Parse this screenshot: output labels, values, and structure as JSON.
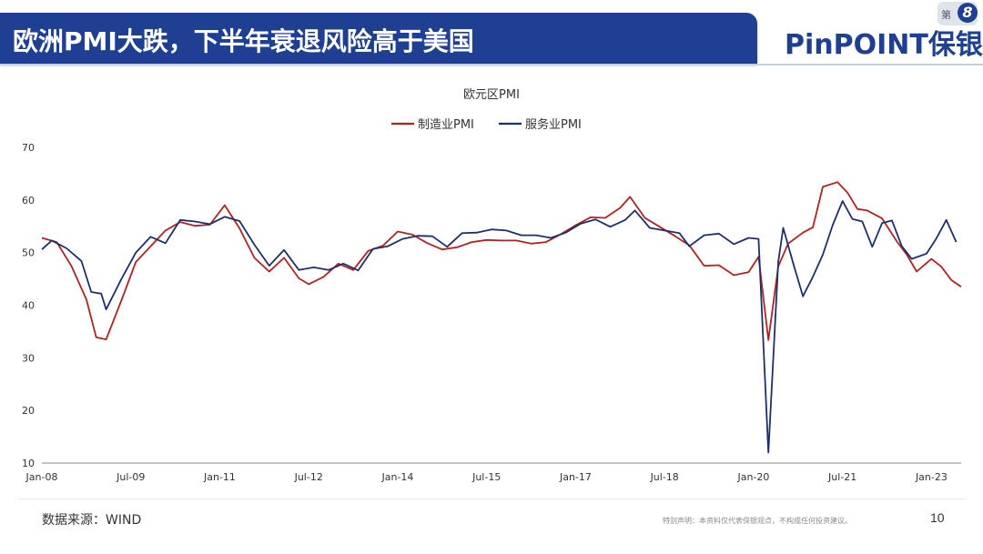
{
  "header": {
    "title": "欧洲PMI大跌，下半年衰退风险高于美国",
    "logo": "PinPOINT保银",
    "badge_text": "第",
    "badge_number": "8"
  },
  "chart_data": {
    "type": "line",
    "title": "欧元区PMI",
    "xlabel": "",
    "ylabel": "",
    "ylim": [
      10,
      70
    ],
    "yticks": [
      10,
      20,
      30,
      40,
      50,
      60,
      70
    ],
    "xticks": [
      "Jan-08",
      "Jul-09",
      "Jan-11",
      "Jul-12",
      "Jan-14",
      "Jul-15",
      "Jan-17",
      "Jul-18",
      "Jan-20",
      "Jul-21",
      "Jan-23"
    ],
    "x_range": [
      "2008-01",
      "2023-07"
    ],
    "legend_position": "top-center",
    "grid": false,
    "series": [
      {
        "name": "制造业PMI",
        "color": "#b22222",
        "points": [
          [
            "2008-01",
            52.8
          ],
          [
            "2008-04",
            52.0
          ],
          [
            "2008-07",
            47.4
          ],
          [
            "2008-10",
            41.1
          ],
          [
            "2008-12",
            33.9
          ],
          [
            "2009-02",
            33.5
          ],
          [
            "2009-05",
            40.7
          ],
          [
            "2009-08",
            48.2
          ],
          [
            "2009-11",
            51.2
          ],
          [
            "2010-02",
            54.2
          ],
          [
            "2010-05",
            55.8
          ],
          [
            "2010-08",
            55.1
          ],
          [
            "2010-11",
            55.3
          ],
          [
            "2011-02",
            59.0
          ],
          [
            "2011-05",
            54.6
          ],
          [
            "2011-08",
            49.0
          ],
          [
            "2011-11",
            46.4
          ],
          [
            "2012-02",
            49.0
          ],
          [
            "2012-05",
            45.1
          ],
          [
            "2012-07",
            44.0
          ],
          [
            "2012-10",
            45.4
          ],
          [
            "2013-01",
            47.9
          ],
          [
            "2013-04",
            46.7
          ],
          [
            "2013-07",
            50.3
          ],
          [
            "2013-10",
            51.3
          ],
          [
            "2014-01",
            54.0
          ],
          [
            "2014-04",
            53.4
          ],
          [
            "2014-07",
            51.8
          ],
          [
            "2014-10",
            50.6
          ],
          [
            "2015-01",
            51.0
          ],
          [
            "2015-04",
            52.0
          ],
          [
            "2015-07",
            52.4
          ],
          [
            "2015-10",
            52.3
          ],
          [
            "2016-01",
            52.3
          ],
          [
            "2016-04",
            51.7
          ],
          [
            "2016-07",
            52.0
          ],
          [
            "2016-10",
            53.5
          ],
          [
            "2017-01",
            55.2
          ],
          [
            "2017-04",
            56.7
          ],
          [
            "2017-07",
            56.6
          ],
          [
            "2017-10",
            58.5
          ],
          [
            "2017-12",
            60.6
          ],
          [
            "2018-03",
            56.6
          ],
          [
            "2018-06",
            54.9
          ],
          [
            "2018-09",
            53.2
          ],
          [
            "2018-12",
            51.4
          ],
          [
            "2019-03",
            47.5
          ],
          [
            "2019-06",
            47.6
          ],
          [
            "2019-09",
            45.7
          ],
          [
            "2019-12",
            46.3
          ],
          [
            "2020-02",
            49.2
          ],
          [
            "2020-04",
            33.4
          ],
          [
            "2020-06",
            47.4
          ],
          [
            "2020-08",
            51.7
          ],
          [
            "2020-11",
            53.8
          ],
          [
            "2021-01",
            54.8
          ],
          [
            "2021-03",
            62.5
          ],
          [
            "2021-06",
            63.4
          ],
          [
            "2021-08",
            61.4
          ],
          [
            "2021-10",
            58.3
          ],
          [
            "2021-12",
            58.0
          ],
          [
            "2022-03",
            56.5
          ],
          [
            "2022-06",
            52.1
          ],
          [
            "2022-08",
            49.6
          ],
          [
            "2022-10",
            46.4
          ],
          [
            "2023-01",
            48.8
          ],
          [
            "2023-03",
            47.3
          ],
          [
            "2023-05",
            44.8
          ],
          [
            "2023-07",
            43.5
          ]
        ]
      },
      {
        "name": "服务业PMI",
        "color": "#1f2f6b",
        "points": [
          [
            "2008-01",
            50.6
          ],
          [
            "2008-03",
            52.3
          ],
          [
            "2008-06",
            50.8
          ],
          [
            "2008-09",
            48.4
          ],
          [
            "2008-11",
            42.5
          ],
          [
            "2009-01",
            42.2
          ],
          [
            "2009-02",
            39.2
          ],
          [
            "2009-05",
            44.8
          ],
          [
            "2009-08",
            50.0
          ],
          [
            "2009-11",
            53.0
          ],
          [
            "2010-02",
            51.8
          ],
          [
            "2010-05",
            56.2
          ],
          [
            "2010-08",
            55.9
          ],
          [
            "2010-11",
            55.4
          ],
          [
            "2011-02",
            56.8
          ],
          [
            "2011-05",
            56.0
          ],
          [
            "2011-08",
            51.5
          ],
          [
            "2011-11",
            47.5
          ],
          [
            "2012-02",
            50.5
          ],
          [
            "2012-05",
            46.7
          ],
          [
            "2012-08",
            47.2
          ],
          [
            "2012-11",
            46.7
          ],
          [
            "2013-02",
            47.9
          ],
          [
            "2013-05",
            46.6
          ],
          [
            "2013-08",
            50.7
          ],
          [
            "2013-11",
            51.2
          ],
          [
            "2014-02",
            52.6
          ],
          [
            "2014-05",
            53.2
          ],
          [
            "2014-08",
            53.1
          ],
          [
            "2014-11",
            51.1
          ],
          [
            "2015-02",
            53.7
          ],
          [
            "2015-05",
            53.8
          ],
          [
            "2015-08",
            54.4
          ],
          [
            "2015-11",
            54.2
          ],
          [
            "2016-02",
            53.3
          ],
          [
            "2016-05",
            53.3
          ],
          [
            "2016-08",
            52.8
          ],
          [
            "2016-11",
            53.8
          ],
          [
            "2017-02",
            55.5
          ],
          [
            "2017-05",
            56.3
          ],
          [
            "2017-08",
            54.9
          ],
          [
            "2017-11",
            56.2
          ],
          [
            "2018-01",
            58.0
          ],
          [
            "2018-04",
            54.7
          ],
          [
            "2018-07",
            54.2
          ],
          [
            "2018-10",
            53.7
          ],
          [
            "2018-12",
            51.2
          ],
          [
            "2019-03",
            53.3
          ],
          [
            "2019-06",
            53.6
          ],
          [
            "2019-09",
            51.6
          ],
          [
            "2019-12",
            52.8
          ],
          [
            "2020-02",
            52.6
          ],
          [
            "2020-04",
            12.0
          ],
          [
            "2020-06",
            48.3
          ],
          [
            "2020-07",
            54.7
          ],
          [
            "2020-09",
            48.0
          ],
          [
            "2020-11",
            41.7
          ],
          [
            "2021-01",
            45.4
          ],
          [
            "2021-03",
            49.6
          ],
          [
            "2021-05",
            55.2
          ],
          [
            "2021-07",
            59.8
          ],
          [
            "2021-09",
            56.4
          ],
          [
            "2021-11",
            55.9
          ],
          [
            "2022-01",
            51.1
          ],
          [
            "2022-03",
            55.6
          ],
          [
            "2022-05",
            56.1
          ],
          [
            "2022-07",
            51.2
          ],
          [
            "2022-09",
            48.8
          ],
          [
            "2022-12",
            49.8
          ],
          [
            "2023-02",
            52.7
          ],
          [
            "2023-04",
            56.2
          ],
          [
            "2023-06",
            52.0
          ]
        ]
      }
    ]
  },
  "footer": {
    "source": "数据来源：WIND",
    "disclaimer": "特别声明：本资料仅代表保银观点，不构成任何投资建议。",
    "page_number": "10"
  }
}
